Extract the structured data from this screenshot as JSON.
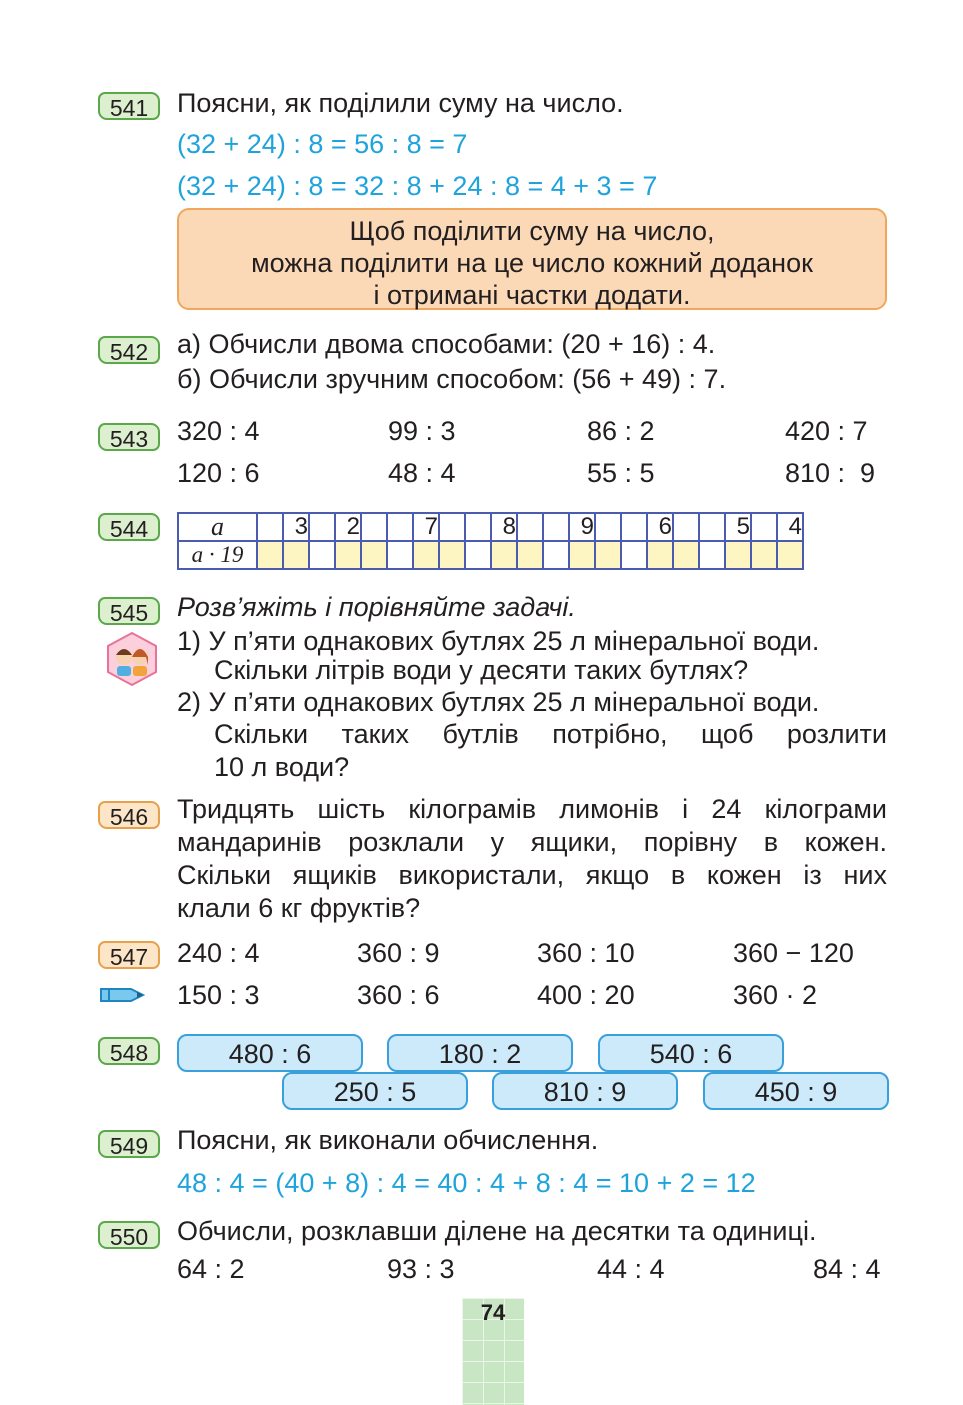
{
  "tasks": {
    "t541": {
      "num": "541",
      "text": "Поясни, як поділили суму на число.",
      "line1": "(32 + 24) : 8 = 56 : 8 = 7",
      "line2": "(32 + 24) : 8 = 32 : 8 + 24 : 8 = 4 + 3 = 7",
      "rule": [
        "Щоб поділити суму на число,",
        "можна поділити на це число кожний доданок",
        "і отримані частки додати."
      ]
    },
    "t542": {
      "num": "542",
      "a": "а) Обчисли двома способами: (20 + 16) : 4.",
      "b": "б) Обчисли зручним способом: (56 + 49) : 7."
    },
    "t543": {
      "num": "543",
      "row1": [
        "320 : 4",
        "99 : 3",
        "86 : 2",
        "420 : 7"
      ],
      "row2": [
        "120 : 6",
        "48 : 4",
        "55 : 5",
        "810 :  9"
      ]
    },
    "t544": {
      "num": "544",
      "row1_label": "a",
      "row2_label": "a · 19",
      "values": [
        "3",
        "2",
        "7",
        "8",
        "9",
        "6",
        "5",
        "4"
      ]
    },
    "t545": {
      "num": "545",
      "title": "Розв’яжіть і порівняйте задачі.",
      "p1a": "1) У п’яти однакових бутлях 25 л мінеральної води.",
      "p1b": "Скільки літрів води у десяти таких бутлях?",
      "p2a": "2) У п’яти однакових бутлях 25 л мінеральної води.",
      "p2b": "Скільки таких бутлів потрібно, щоб розлити",
      "p2c": "10 л води?"
    },
    "t546": {
      "num": "546",
      "l1": "Тридцять шість кілограмів лимонів і 24 кілограми",
      "l2": "мандаринів розклали у ящики, порівну в кожен.",
      "l3": "Скільки ящиків використали, якщо в кожен із них",
      "l4": "клали 6 кг фруктів?"
    },
    "t547": {
      "num": "547",
      "row1": [
        "240 : 4",
        "360 : 9",
        "360 : 10",
        "360 − 120"
      ],
      "row2": [
        "150 : 3",
        "360 : 6",
        "400 : 20",
        "360 · 2"
      ]
    },
    "t548": {
      "num": "548",
      "top": [
        "480 : 6",
        "180 : 2",
        "540 : 6"
      ],
      "bottom": [
        "250 : 5",
        "810 : 9",
        "450 : 9"
      ]
    },
    "t549": {
      "num": "549",
      "text": "Поясни, як виконали обчислення.",
      "line": "48 : 4 = (40 + 8) : 4 = 40 : 4 + 8 : 4 = 10 + 2 = 12"
    },
    "t550": {
      "num": "550",
      "text": "Обчисли, розклавши ділене на десятки та одиниці.",
      "row": [
        "64 : 2",
        "93 : 3",
        "44 : 4",
        "84 : 4"
      ]
    }
  },
  "page_number": "74",
  "icons": {
    "pair_work": "pair-work-icon",
    "pencil": "pencil-icon"
  }
}
